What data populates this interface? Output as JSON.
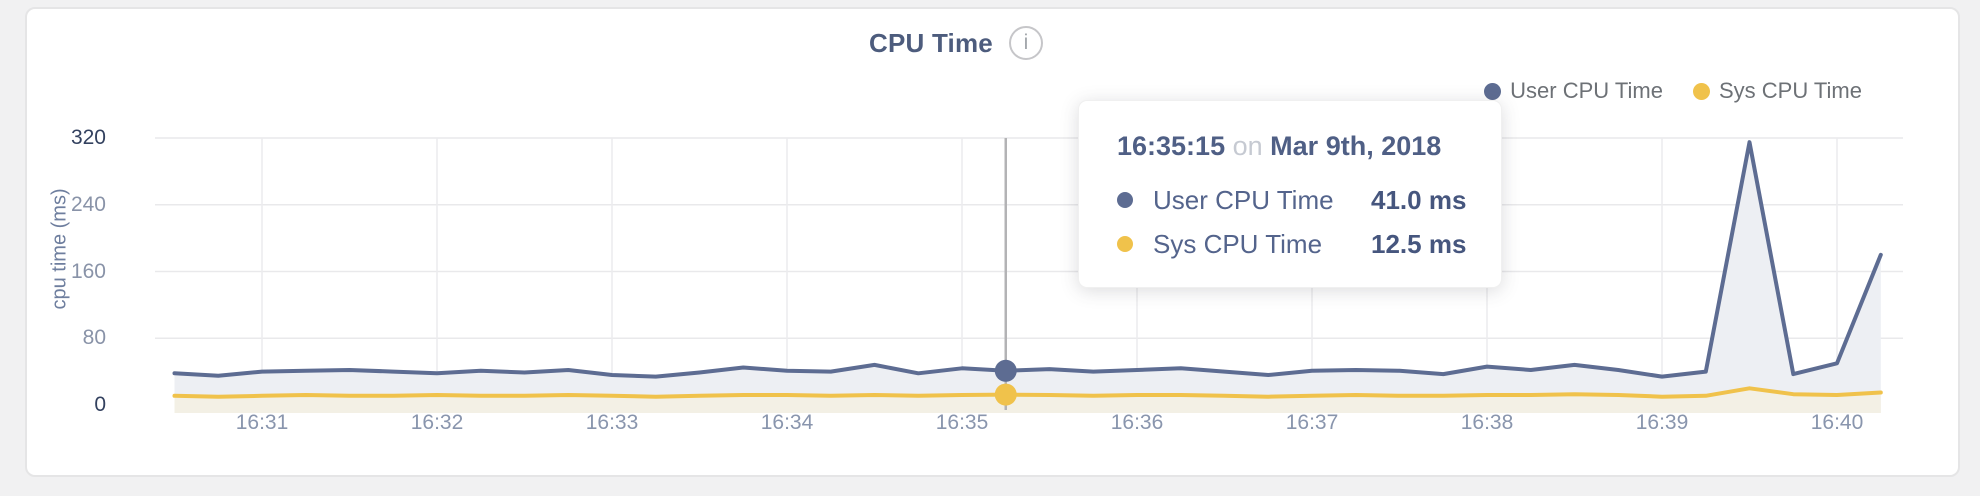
{
  "card": {
    "title": "CPU Time",
    "info_icon": "i"
  },
  "legend": {
    "items": [
      {
        "label": "User CPU Time",
        "color": "#5d6c92"
      },
      {
        "label": "Sys CPU Time",
        "color": "#f0c24b"
      }
    ]
  },
  "tooltip": {
    "time": "16:35:15",
    "connector": "on",
    "date": "Mar 9th, 2018",
    "rows": [
      {
        "label": "User CPU Time",
        "value": "41.0 ms",
        "color": "#5d6c92"
      },
      {
        "label": "Sys CPU Time",
        "value": "12.5 ms",
        "color": "#f0c24b"
      }
    ]
  },
  "chart_data": {
    "type": "area",
    "title": "CPU Time",
    "xlabel": "",
    "ylabel": "cpu time (ms)",
    "ylim": [
      0,
      320
    ],
    "y_ticks": [
      0,
      80,
      160,
      240,
      320
    ],
    "x_ticks": [
      "16:31",
      "16:32",
      "16:33",
      "16:34",
      "16:35",
      "16:36",
      "16:37",
      "16:38",
      "16:39",
      "16:40"
    ],
    "grid": true,
    "legend_position": "top-right",
    "x": [
      "16:30:30",
      "16:30:45",
      "16:31:00",
      "16:31:15",
      "16:31:30",
      "16:31:45",
      "16:32:00",
      "16:32:15",
      "16:32:30",
      "16:32:45",
      "16:33:00",
      "16:33:15",
      "16:33:30",
      "16:33:45",
      "16:34:00",
      "16:34:15",
      "16:34:30",
      "16:34:45",
      "16:35:00",
      "16:35:15",
      "16:35:30",
      "16:35:45",
      "16:36:00",
      "16:36:15",
      "16:36:30",
      "16:36:45",
      "16:37:00",
      "16:37:15",
      "16:37:30",
      "16:37:45",
      "16:38:00",
      "16:38:15",
      "16:38:30",
      "16:38:45",
      "16:39:00",
      "16:39:15",
      "16:39:30",
      "16:39:45",
      "16:40:00",
      "16:40:15"
    ],
    "series": [
      {
        "name": "User CPU Time",
        "color": "#5d6c92",
        "fill": "#edeff3",
        "values": [
          38,
          35,
          40,
          41,
          42,
          40,
          38,
          41,
          39,
          42,
          36,
          34,
          39,
          45,
          41,
          40,
          48,
          38,
          44,
          41,
          43,
          40,
          42,
          44,
          40,
          36,
          41,
          42,
          41,
          37,
          46,
          42,
          48,
          42,
          34,
          40,
          315,
          37,
          50,
          180
        ]
      },
      {
        "name": "Sys CPU Time",
        "color": "#f0c24b",
        "fill": "#f3f0e5",
        "values": [
          11,
          10,
          11,
          12,
          11,
          11,
          12,
          11,
          11,
          12,
          11,
          10,
          11,
          12,
          12,
          11,
          12,
          11,
          12,
          12.5,
          12,
          11,
          12,
          12,
          11,
          10,
          11,
          12,
          11,
          11,
          12,
          12,
          13,
          12,
          10,
          11,
          20,
          13,
          12,
          15
        ]
      }
    ],
    "highlight": {
      "x": "16:35:15",
      "values": [
        41.0,
        12.5
      ],
      "crosshair_color": "#b3b3b5"
    }
  }
}
